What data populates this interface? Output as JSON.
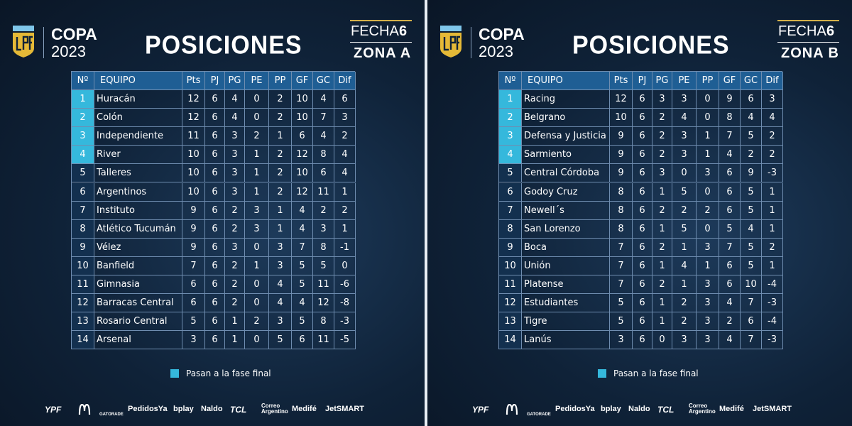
{
  "panels": [
    {
      "brand": {
        "name": "COPA",
        "year": "2023"
      },
      "title": "POSICIONES",
      "fecha": {
        "label": "FECHA",
        "number": "6"
      },
      "zona": "ZONA A",
      "table": {
        "headers": [
          "Nº",
          "EQUIPO",
          "Pts",
          "PJ",
          "PG",
          "PE",
          "PP",
          "GF",
          "GC",
          "Dif"
        ],
        "rows": [
          [
            1,
            "Huracán",
            12,
            6,
            4,
            0,
            2,
            10,
            4,
            6
          ],
          [
            2,
            "Colón",
            12,
            6,
            4,
            0,
            2,
            10,
            7,
            3
          ],
          [
            3,
            "Independiente",
            11,
            6,
            3,
            2,
            1,
            6,
            4,
            2
          ],
          [
            4,
            "River",
            10,
            6,
            3,
            1,
            2,
            12,
            8,
            4
          ],
          [
            5,
            "Talleres",
            10,
            6,
            3,
            1,
            2,
            10,
            6,
            4
          ],
          [
            6,
            "Argentinos",
            10,
            6,
            3,
            1,
            2,
            12,
            11,
            1
          ],
          [
            7,
            "Instituto",
            9,
            6,
            2,
            3,
            1,
            4,
            2,
            2
          ],
          [
            8,
            "Atlético Tucumán",
            9,
            6,
            2,
            3,
            1,
            4,
            3,
            1
          ],
          [
            9,
            "Vélez",
            9,
            6,
            3,
            0,
            3,
            7,
            8,
            -1
          ],
          [
            10,
            "Banfield",
            7,
            6,
            2,
            1,
            3,
            5,
            5,
            0
          ],
          [
            11,
            "Gimnasia",
            6,
            6,
            2,
            0,
            4,
            5,
            11,
            -6
          ],
          [
            12,
            "Barracas Central",
            6,
            6,
            2,
            0,
            4,
            4,
            12,
            -8
          ],
          [
            13,
            "Rosario Central",
            5,
            6,
            1,
            2,
            3,
            5,
            8,
            -3
          ],
          [
            14,
            "Arsenal",
            3,
            6,
            1,
            0,
            5,
            6,
            11,
            -5
          ]
        ]
      },
      "legend": "Pasan a la fase final",
      "sponsors": [
        "YPF",
        "GATORADE",
        "PedidosYa",
        "bplay",
        "Naldo",
        "TCL",
        "Correo Argentino",
        "Medifé",
        "JetSMART"
      ]
    },
    {
      "brand": {
        "name": "COPA",
        "year": "2023"
      },
      "title": "POSICIONES",
      "fecha": {
        "label": "FECHA",
        "number": "6"
      },
      "zona": "ZONA B",
      "table": {
        "headers": [
          "Nº",
          "EQUIPO",
          "Pts",
          "PJ",
          "PG",
          "PE",
          "PP",
          "GF",
          "GC",
          "Dif"
        ],
        "rows": [
          [
            1,
            "Racing",
            12,
            6,
            3,
            3,
            0,
            9,
            6,
            3
          ],
          [
            2,
            "Belgrano",
            10,
            6,
            2,
            4,
            0,
            8,
            4,
            4
          ],
          [
            3,
            "Defensa y Justicia",
            9,
            6,
            2,
            3,
            1,
            7,
            5,
            2
          ],
          [
            4,
            "Sarmiento",
            9,
            6,
            2,
            3,
            1,
            4,
            2,
            2
          ],
          [
            5,
            "Central Córdoba",
            9,
            6,
            3,
            0,
            3,
            6,
            9,
            -3
          ],
          [
            6,
            "Godoy Cruz",
            8,
            6,
            1,
            5,
            0,
            6,
            5,
            1
          ],
          [
            7,
            "Newell´s",
            8,
            6,
            2,
            2,
            2,
            6,
            5,
            1
          ],
          [
            8,
            "San Lorenzo",
            8,
            6,
            1,
            5,
            0,
            5,
            4,
            1
          ],
          [
            9,
            "Boca",
            7,
            6,
            2,
            1,
            3,
            7,
            5,
            2
          ],
          [
            10,
            "Unión",
            7,
            6,
            1,
            4,
            1,
            6,
            5,
            1
          ],
          [
            11,
            "Platense",
            7,
            6,
            2,
            1,
            3,
            6,
            10,
            -4
          ],
          [
            12,
            "Estudiantes",
            5,
            6,
            1,
            2,
            3,
            4,
            7,
            -3
          ],
          [
            13,
            "Tigre",
            5,
            6,
            1,
            2,
            3,
            2,
            6,
            -4
          ],
          [
            14,
            "Lanús",
            3,
            6,
            0,
            3,
            3,
            4,
            7,
            -3
          ]
        ]
      },
      "legend": "Pasan a la fase final",
      "sponsors": [
        "YPF",
        "GATORADE",
        "PedidosYa",
        "bplay",
        "Naldo",
        "TCL",
        "Correo Argentino",
        "Medifé",
        "JetSMART"
      ]
    }
  ]
}
